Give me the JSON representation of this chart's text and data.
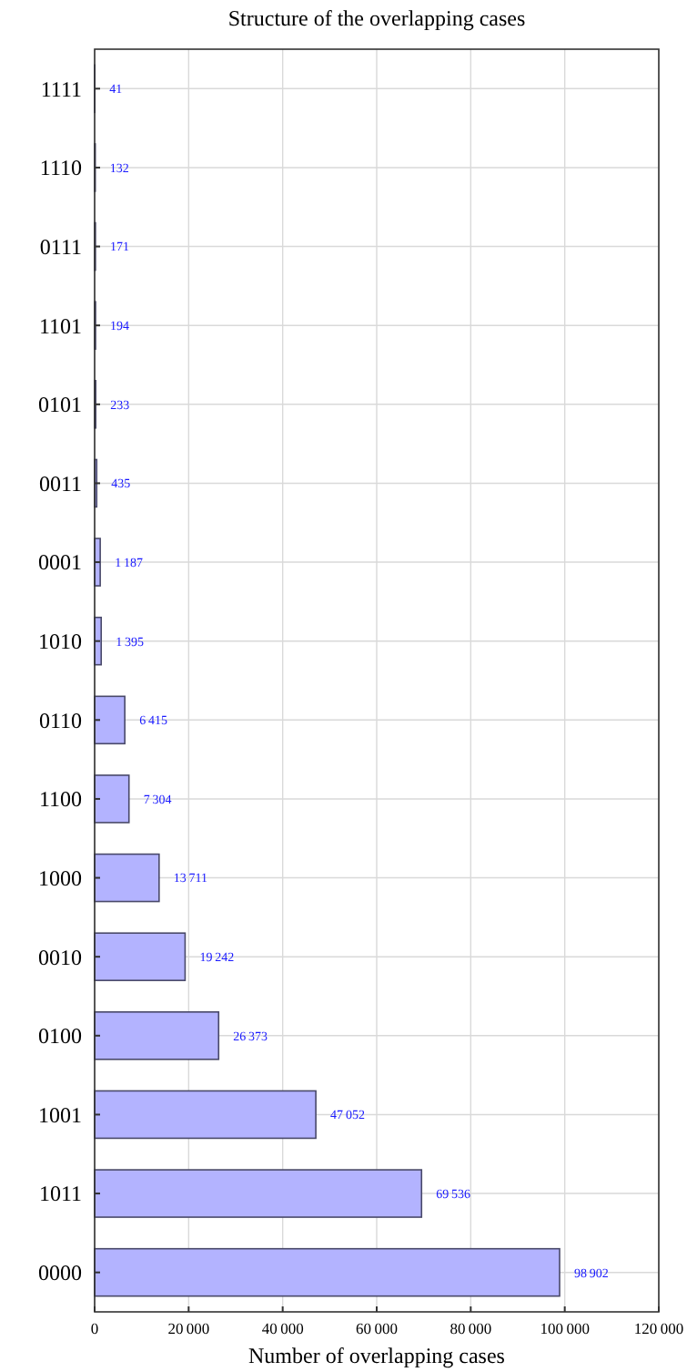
{
  "chart_data": {
    "type": "bar",
    "orientation": "horizontal",
    "title": "Structure of the overlapping cases",
    "xlabel": "Number of overlapping cases",
    "categories": [
      "1111",
      "1110",
      "0111",
      "1101",
      "0101",
      "0011",
      "0001",
      "1010",
      "0110",
      "1100",
      "1000",
      "0010",
      "0100",
      "1001",
      "1011",
      "0000"
    ],
    "values": [
      41,
      132,
      171,
      194,
      233,
      435,
      1187,
      1395,
      6415,
      7304,
      13711,
      19242,
      26373,
      47052,
      69536,
      98902
    ],
    "value_labels": [
      "41",
      "132",
      "171",
      "194",
      "233",
      "435",
      "1 187",
      "1 395",
      "6 415",
      "7 304",
      "13 711",
      "19 242",
      "26 373",
      "47 052",
      "69 536",
      "98 902"
    ],
    "color": "#b3b3ff",
    "xlim": [
      0,
      120000
    ],
    "xticks": [
      0,
      {
        "value": 20000,
        "label": "20 000"
      },
      {
        "value": 40000,
        "label": "40 000"
      },
      {
        "value": 60000,
        "label": "60 000"
      },
      {
        "value": 80000,
        "label": "80 000"
      },
      {
        "value": 100000,
        "label": "100 000"
      },
      {
        "value": 120000,
        "label": "120 000"
      }
    ],
    "grid": true
  }
}
